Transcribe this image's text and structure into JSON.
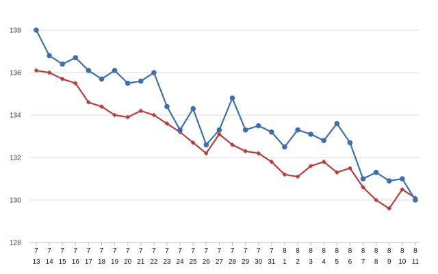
{
  "chart_data": {
    "type": "line",
    "title": "",
    "xlabel": "",
    "ylabel": "",
    "ylim": [
      128,
      138
    ],
    "yticks": [
      128,
      130,
      132,
      134,
      136,
      138
    ],
    "grid": true,
    "legend": "none",
    "categories": [
      {
        "month": "7",
        "day": "13"
      },
      {
        "month": "7",
        "day": "14"
      },
      {
        "month": "7",
        "day": "15"
      },
      {
        "month": "7",
        "day": "16"
      },
      {
        "month": "7",
        "day": "17"
      },
      {
        "month": "7",
        "day": "18"
      },
      {
        "month": "7",
        "day": "19"
      },
      {
        "month": "7",
        "day": "20"
      },
      {
        "month": "7",
        "day": "21"
      },
      {
        "month": "7",
        "day": "22"
      },
      {
        "month": "7",
        "day": "23"
      },
      {
        "month": "7",
        "day": "24"
      },
      {
        "month": "7",
        "day": "25"
      },
      {
        "month": "7",
        "day": "26"
      },
      {
        "month": "7",
        "day": "27"
      },
      {
        "month": "7",
        "day": "28"
      },
      {
        "month": "7",
        "day": "29"
      },
      {
        "month": "7",
        "day": "30"
      },
      {
        "month": "7",
        "day": "31"
      },
      {
        "month": "8",
        "day": "1"
      },
      {
        "month": "8",
        "day": "2"
      },
      {
        "month": "8",
        "day": "3"
      },
      {
        "month": "8",
        "day": "4"
      },
      {
        "month": "8",
        "day": "5"
      },
      {
        "month": "8",
        "day": "6"
      },
      {
        "month": "8",
        "day": "7"
      },
      {
        "month": "8",
        "day": "8"
      },
      {
        "month": "8",
        "day": "9"
      },
      {
        "month": "8",
        "day": "10"
      },
      {
        "month": "8",
        "day": "11"
      }
    ],
    "series": [
      {
        "color": "#3d6fae",
        "marker": "circle",
        "values": [
          138.0,
          136.8,
          136.4,
          136.7,
          136.1,
          135.7,
          136.1,
          135.5,
          135.6,
          136.0,
          134.4,
          133.3,
          134.3,
          132.6,
          133.3,
          134.8,
          133.3,
          133.5,
          133.2,
          132.5,
          133.3,
          133.1,
          132.8,
          133.6,
          132.7,
          131.0,
          131.3,
          130.9,
          131.0,
          130.0
        ]
      },
      {
        "color": "#b73c3a",
        "marker": "diamond",
        "values": [
          136.1,
          136.0,
          135.7,
          135.5,
          134.6,
          134.4,
          134.0,
          133.9,
          134.2,
          134.0,
          133.6,
          133.2,
          132.7,
          132.2,
          133.1,
          132.6,
          132.3,
          132.2,
          131.8,
          131.2,
          131.1,
          131.6,
          131.8,
          131.3,
          131.5,
          130.6,
          130.0,
          129.6,
          130.5,
          130.1
        ]
      }
    ]
  }
}
